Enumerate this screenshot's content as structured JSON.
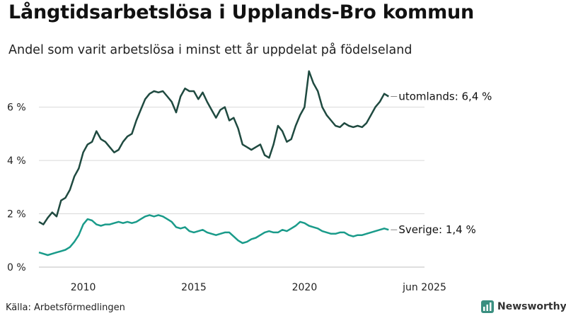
{
  "header": {
    "title": "Långtidsarbetslösa i Upplands-Bro kommun",
    "subtitle": "Andel som varit arbetslösa i minst ett år uppdelat på födelseland"
  },
  "footer": {
    "source": "Källa: Arbetsförmedlingen",
    "logo_text": "Newsworthy"
  },
  "colors": {
    "utomlands": "#1f4a40",
    "sverige": "#1a9b8a",
    "grid": "#d9d9d9"
  },
  "chart_data": {
    "type": "line",
    "title": "Långtidsarbetslösa i Upplands-Bro kommun",
    "subtitle": "Andel som varit arbetslösa i minst ett år uppdelat på födelseland",
    "xlim": [
      2008.0,
      2025.42
    ],
    "ylim": [
      0,
      7.5
    ],
    "y_ticks": [
      {
        "value": 0,
        "label": "0 %"
      },
      {
        "value": 2,
        "label": "2 %"
      },
      {
        "value": 4,
        "label": "4 %"
      },
      {
        "value": 6,
        "label": "6 %"
      }
    ],
    "x_ticks": [
      {
        "value": 2010,
        "label": "2010"
      },
      {
        "value": 2015,
        "label": "2015"
      },
      {
        "value": 2020,
        "label": "2020"
      },
      {
        "value": 2025.42,
        "label": "jun 2025"
      }
    ],
    "grid": "horizontal",
    "series": [
      {
        "name": "utomlands",
        "end_label": "utomlands: 6,4 %",
        "color": "#1f4a40",
        "points": [
          [
            2008.0,
            1.7
          ],
          [
            2008.2,
            1.6
          ],
          [
            2008.4,
            1.85
          ],
          [
            2008.6,
            2.05
          ],
          [
            2008.8,
            1.9
          ],
          [
            2009.0,
            2.5
          ],
          [
            2009.2,
            2.6
          ],
          [
            2009.4,
            2.9
          ],
          [
            2009.6,
            3.4
          ],
          [
            2009.8,
            3.7
          ],
          [
            2010.0,
            4.3
          ],
          [
            2010.2,
            4.6
          ],
          [
            2010.4,
            4.7
          ],
          [
            2010.6,
            5.1
          ],
          [
            2010.8,
            4.8
          ],
          [
            2011.0,
            4.7
          ],
          [
            2011.2,
            4.5
          ],
          [
            2011.4,
            4.3
          ],
          [
            2011.6,
            4.4
          ],
          [
            2011.8,
            4.7
          ],
          [
            2012.0,
            4.9
          ],
          [
            2012.2,
            5.0
          ],
          [
            2012.4,
            5.5
          ],
          [
            2012.6,
            5.9
          ],
          [
            2012.8,
            6.3
          ],
          [
            2013.0,
            6.5
          ],
          [
            2013.2,
            6.6
          ],
          [
            2013.4,
            6.55
          ],
          [
            2013.6,
            6.6
          ],
          [
            2013.8,
            6.4
          ],
          [
            2014.0,
            6.2
          ],
          [
            2014.2,
            5.8
          ],
          [
            2014.4,
            6.4
          ],
          [
            2014.6,
            6.7
          ],
          [
            2014.8,
            6.6
          ],
          [
            2015.0,
            6.6
          ],
          [
            2015.2,
            6.3
          ],
          [
            2015.4,
            6.55
          ],
          [
            2015.6,
            6.2
          ],
          [
            2015.8,
            5.9
          ],
          [
            2016.0,
            5.6
          ],
          [
            2016.2,
            5.9
          ],
          [
            2016.4,
            6.0
          ],
          [
            2016.6,
            5.5
          ],
          [
            2016.8,
            5.6
          ],
          [
            2017.0,
            5.2
          ],
          [
            2017.2,
            4.6
          ],
          [
            2017.4,
            4.5
          ],
          [
            2017.6,
            4.4
          ],
          [
            2017.8,
            4.5
          ],
          [
            2018.0,
            4.6
          ],
          [
            2018.2,
            4.2
          ],
          [
            2018.4,
            4.1
          ],
          [
            2018.6,
            4.6
          ],
          [
            2018.8,
            5.3
          ],
          [
            2019.0,
            5.1
          ],
          [
            2019.2,
            4.7
          ],
          [
            2019.4,
            4.8
          ],
          [
            2019.6,
            5.3
          ],
          [
            2019.8,
            5.7
          ],
          [
            2020.0,
            6.0
          ],
          [
            2020.2,
            7.35
          ],
          [
            2020.4,
            6.9
          ],
          [
            2020.6,
            6.6
          ],
          [
            2020.8,
            6.0
          ],
          [
            2021.0,
            5.7
          ],
          [
            2021.2,
            5.5
          ],
          [
            2021.4,
            5.3
          ],
          [
            2021.6,
            5.25
          ],
          [
            2021.8,
            5.4
          ],
          [
            2022.0,
            5.3
          ],
          [
            2022.2,
            5.25
          ],
          [
            2022.4,
            5.3
          ],
          [
            2022.6,
            5.25
          ],
          [
            2022.8,
            5.4
          ],
          [
            2023.0,
            5.7
          ],
          [
            2023.2,
            6.0
          ],
          [
            2023.4,
            6.2
          ],
          [
            2023.6,
            6.5
          ],
          [
            2023.8,
            6.4
          ]
        ]
      },
      {
        "name": "Sverige",
        "end_label": "Sverige: 1,4 %",
        "color": "#1a9b8a",
        "points": [
          [
            2008.0,
            0.55
          ],
          [
            2008.2,
            0.5
          ],
          [
            2008.4,
            0.45
          ],
          [
            2008.6,
            0.5
          ],
          [
            2008.8,
            0.55
          ],
          [
            2009.0,
            0.6
          ],
          [
            2009.2,
            0.65
          ],
          [
            2009.4,
            0.75
          ],
          [
            2009.6,
            0.95
          ],
          [
            2009.8,
            1.2
          ],
          [
            2010.0,
            1.6
          ],
          [
            2010.2,
            1.8
          ],
          [
            2010.4,
            1.75
          ],
          [
            2010.6,
            1.6
          ],
          [
            2010.8,
            1.55
          ],
          [
            2011.0,
            1.6
          ],
          [
            2011.2,
            1.6
          ],
          [
            2011.4,
            1.65
          ],
          [
            2011.6,
            1.7
          ],
          [
            2011.8,
            1.65
          ],
          [
            2012.0,
            1.7
          ],
          [
            2012.2,
            1.65
          ],
          [
            2012.4,
            1.7
          ],
          [
            2012.6,
            1.8
          ],
          [
            2012.8,
            1.9
          ],
          [
            2013.0,
            1.95
          ],
          [
            2013.2,
            1.9
          ],
          [
            2013.4,
            1.95
          ],
          [
            2013.6,
            1.9
          ],
          [
            2013.8,
            1.8
          ],
          [
            2014.0,
            1.7
          ],
          [
            2014.2,
            1.5
          ],
          [
            2014.4,
            1.45
          ],
          [
            2014.6,
            1.5
          ],
          [
            2014.8,
            1.35
          ],
          [
            2015.0,
            1.3
          ],
          [
            2015.2,
            1.35
          ],
          [
            2015.4,
            1.4
          ],
          [
            2015.6,
            1.3
          ],
          [
            2015.8,
            1.25
          ],
          [
            2016.0,
            1.2
          ],
          [
            2016.2,
            1.25
          ],
          [
            2016.4,
            1.3
          ],
          [
            2016.6,
            1.3
          ],
          [
            2016.8,
            1.15
          ],
          [
            2017.0,
            1.0
          ],
          [
            2017.2,
            0.9
          ],
          [
            2017.4,
            0.95
          ],
          [
            2017.6,
            1.05
          ],
          [
            2017.8,
            1.1
          ],
          [
            2018.0,
            1.2
          ],
          [
            2018.2,
            1.3
          ],
          [
            2018.4,
            1.35
          ],
          [
            2018.6,
            1.3
          ],
          [
            2018.8,
            1.3
          ],
          [
            2019.0,
            1.4
          ],
          [
            2019.2,
            1.35
          ],
          [
            2019.4,
            1.45
          ],
          [
            2019.6,
            1.55
          ],
          [
            2019.8,
            1.7
          ],
          [
            2020.0,
            1.65
          ],
          [
            2020.2,
            1.55
          ],
          [
            2020.4,
            1.5
          ],
          [
            2020.6,
            1.45
          ],
          [
            2020.8,
            1.35
          ],
          [
            2021.0,
            1.3
          ],
          [
            2021.2,
            1.25
          ],
          [
            2021.4,
            1.25
          ],
          [
            2021.6,
            1.3
          ],
          [
            2021.8,
            1.3
          ],
          [
            2022.0,
            1.2
          ],
          [
            2022.2,
            1.15
          ],
          [
            2022.4,
            1.2
          ],
          [
            2022.6,
            1.2
          ],
          [
            2022.8,
            1.25
          ],
          [
            2023.0,
            1.3
          ],
          [
            2023.2,
            1.35
          ],
          [
            2023.4,
            1.4
          ],
          [
            2023.6,
            1.45
          ],
          [
            2023.8,
            1.4
          ]
        ]
      }
    ]
  }
}
